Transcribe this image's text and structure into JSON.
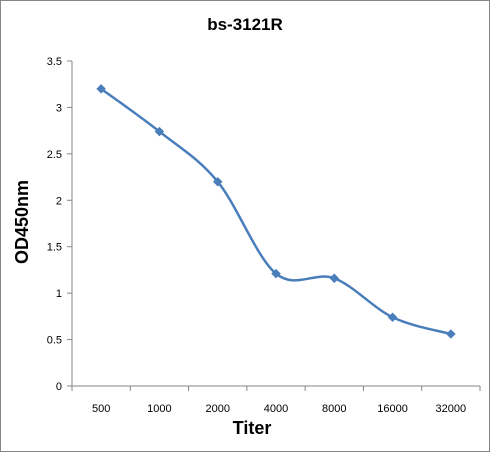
{
  "chart_data": {
    "type": "line",
    "title": "bs-3121R",
    "xlabel": "Titer",
    "ylabel": "OD450nm",
    "categories": [
      "500",
      "1000",
      "2000",
      "4000",
      "8000",
      "16000",
      "32000"
    ],
    "series": [
      {
        "values": [
          3.2,
          2.74,
          2.2,
          1.21,
          1.16,
          0.74,
          0.56
        ]
      }
    ],
    "ylim": [
      0,
      3.5
    ],
    "yticks": [
      "0",
      "0.5",
      "1",
      "1.5",
      "2",
      "2.5",
      "3",
      "3.5"
    ],
    "grid": false,
    "legend": "none",
    "line_color": "#4a7ebb",
    "frame_color": "#868686"
  }
}
